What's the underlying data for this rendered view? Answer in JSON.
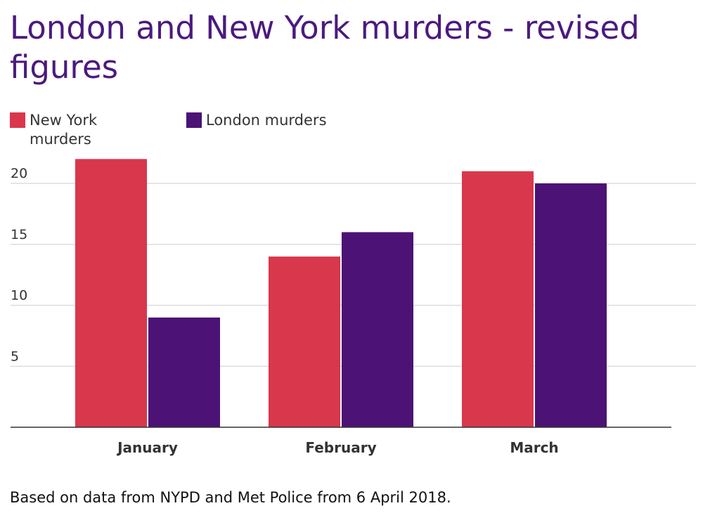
{
  "chart_data": {
    "type": "bar",
    "title": "London and New York murders - revised figures",
    "categories": [
      "January",
      "February",
      "March"
    ],
    "series": [
      {
        "name": "New York murders",
        "color": "#d9374b",
        "values": [
          22,
          14,
          21
        ]
      },
      {
        "name": "London murders",
        "color": "#4c1275",
        "values": [
          9,
          16,
          20
        ]
      }
    ],
    "yticks": [
      5,
      10,
      15,
      20
    ],
    "ylim": [
      0,
      22
    ],
    "grid": true,
    "legend": "top-left",
    "source": "Based on data from NYPD and Met Police from 6 April 2018."
  }
}
